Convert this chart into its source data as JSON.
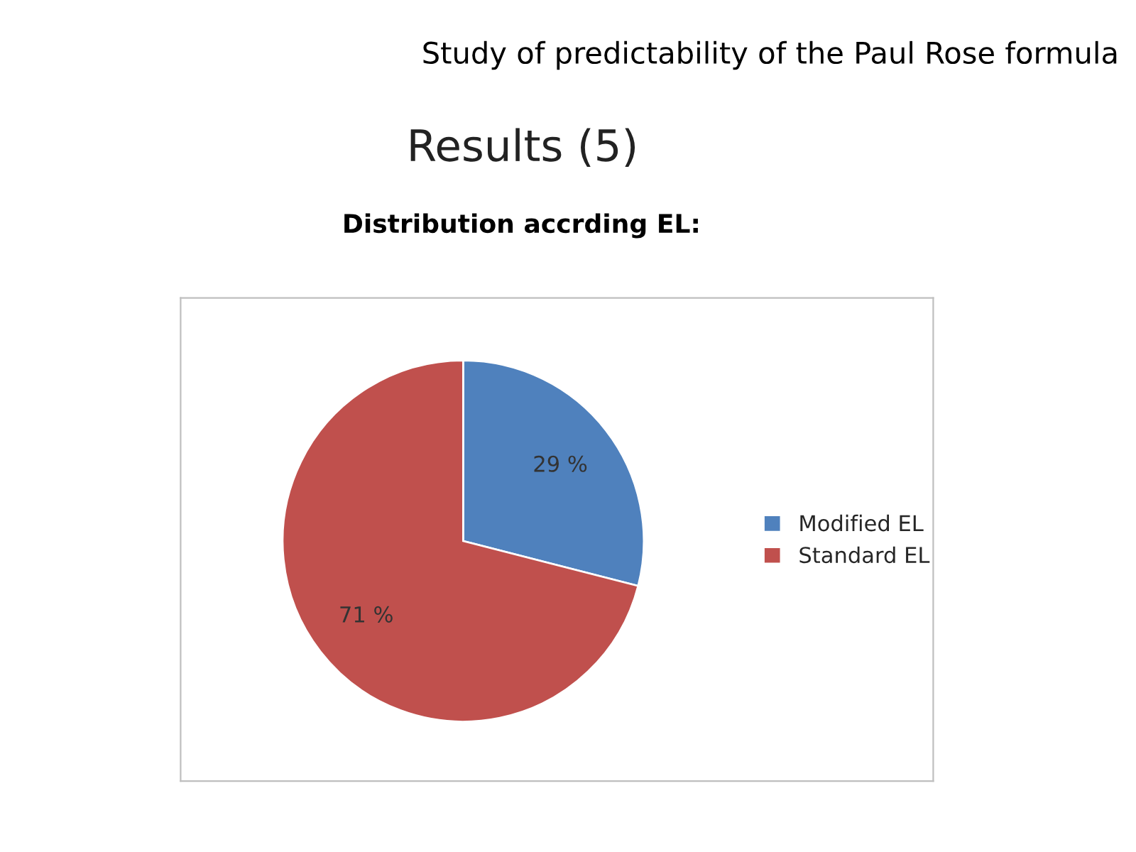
{
  "chart_data": {
    "type": "pie",
    "title": "Study of predictability of the Paul Rose formula",
    "subtitle": "Results (5)",
    "annotations": [
      "Distribution accrding EL:"
    ],
    "categories": [
      "Modified EL",
      "Standard EL"
    ],
    "values": [
      29,
      71
    ],
    "colors": [
      "#4f81bd",
      "#c0504d"
    ],
    "value_labels": [
      "29 %",
      "71 %"
    ],
    "legend": "right"
  }
}
